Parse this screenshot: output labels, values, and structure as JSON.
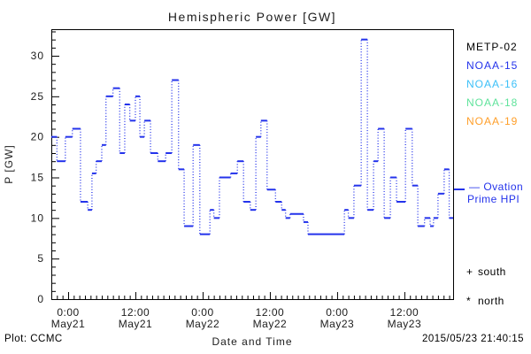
{
  "title": "Hemispheric Power [GW]",
  "footer": {
    "left": "Plot: CCMC",
    "right": "2015/05/23 21:40:15"
  },
  "legend": {
    "satellites": [
      {
        "label": "METP-02",
        "color": "#000000"
      },
      {
        "label": "NOAA-15",
        "color": "#2433eb"
      },
      {
        "label": "NOAA-16",
        "color": "#3cc0f8"
      },
      {
        "label": "NOAA-18",
        "color": "#5fe39b"
      },
      {
        "label": "NOAA-19",
        "color": "#ff9f2a"
      }
    ],
    "model": {
      "line1": "— Ovation",
      "line2": "Prime HPI",
      "color": "#2433eb"
    },
    "markers": [
      {
        "glyph": "+",
        "label": "south"
      },
      {
        "glyph": "*",
        "label": "north"
      }
    ]
  },
  "chart_data": {
    "type": "line",
    "style": "step-with-dotted-risers",
    "title": "Hemispheric Power [GW]",
    "xlabel": "Date and Time",
    "ylabel": "P [GW]",
    "line_color": "#2433eb",
    "x_unit": "hours since 2015-05-21 00:00",
    "xlim": [
      -3,
      68.7
    ],
    "ylim": [
      0,
      33.3
    ],
    "y_major_ticks": [
      0,
      5,
      10,
      15,
      20,
      25,
      30
    ],
    "y_minor_step": 1,
    "x_minor_step_hours": 1,
    "x_major_ticks": [
      {
        "t": 0,
        "time": "0:00",
        "date": "May21"
      },
      {
        "t": 12,
        "time": "12:00",
        "date": "May21"
      },
      {
        "t": 24,
        "time": "0:00",
        "date": "May22"
      },
      {
        "t": 36,
        "time": "12:00",
        "date": "May22"
      },
      {
        "t": 48,
        "time": "0:00",
        "date": "May23"
      },
      {
        "t": 60,
        "time": "12:00",
        "date": "May23"
      }
    ],
    "series": [
      {
        "name": "Ovation Prime HPI",
        "points": [
          [
            -3,
            20
          ],
          [
            -2,
            17
          ],
          [
            -0.5,
            20
          ],
          [
            0.75,
            21
          ],
          [
            2.2,
            12
          ],
          [
            3.5,
            11
          ],
          [
            4.25,
            15.5
          ],
          [
            5,
            17
          ],
          [
            6,
            19
          ],
          [
            6.75,
            25
          ],
          [
            8,
            26
          ],
          [
            9.2,
            18
          ],
          [
            10.1,
            24
          ],
          [
            11,
            22
          ],
          [
            12,
            25
          ],
          [
            12.8,
            20
          ],
          [
            13.6,
            22
          ],
          [
            14.7,
            18
          ],
          [
            16,
            17
          ],
          [
            17.4,
            18
          ],
          [
            18.5,
            27
          ],
          [
            19.7,
            16
          ],
          [
            20.7,
            9
          ],
          [
            22.3,
            19
          ],
          [
            23.5,
            8
          ],
          [
            25.3,
            11
          ],
          [
            26,
            10
          ],
          [
            27,
            15
          ],
          [
            29,
            15.5
          ],
          [
            30.2,
            17
          ],
          [
            31.3,
            12
          ],
          [
            32.5,
            11
          ],
          [
            33.5,
            20
          ],
          [
            34.4,
            22
          ],
          [
            35.5,
            13.5
          ],
          [
            37,
            12
          ],
          [
            38.1,
            11
          ],
          [
            38.8,
            10
          ],
          [
            39.6,
            10.5
          ],
          [
            42,
            9.5
          ],
          [
            42.8,
            8
          ],
          [
            49.3,
            11
          ],
          [
            50,
            10
          ],
          [
            51,
            14
          ],
          [
            52.3,
            32
          ],
          [
            53.4,
            11
          ],
          [
            54.5,
            17
          ],
          [
            55.3,
            21
          ],
          [
            56.4,
            10
          ],
          [
            57.5,
            15
          ],
          [
            58.6,
            12
          ],
          [
            60.2,
            21
          ],
          [
            61.4,
            14
          ],
          [
            62.4,
            9
          ],
          [
            63.6,
            10
          ],
          [
            64.6,
            9
          ],
          [
            65.2,
            10
          ],
          [
            66,
            13
          ],
          [
            67.1,
            16
          ],
          [
            68,
            10
          ]
        ],
        "end_t": 68.7
      }
    ]
  }
}
